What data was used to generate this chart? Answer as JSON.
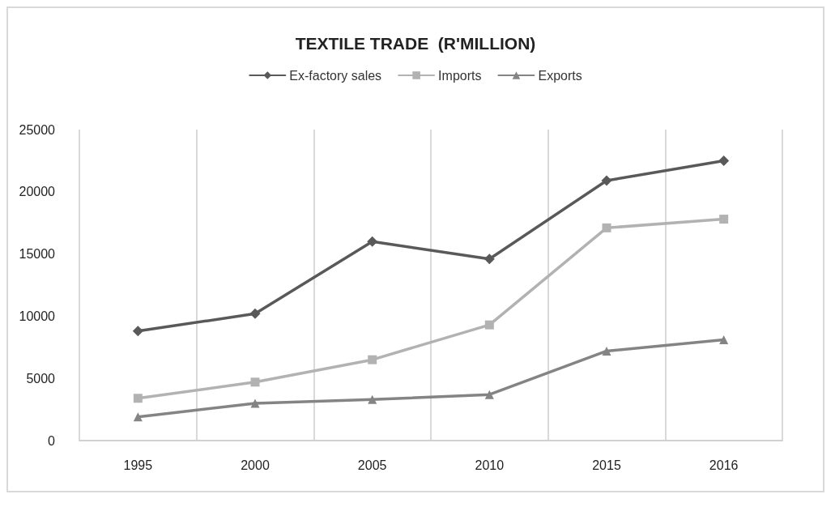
{
  "chart_data": {
    "type": "line",
    "title": "TEXTILE TRADE  (R'MILLION)",
    "categories": [
      "1995",
      "2000",
      "2005",
      "2010",
      "2015",
      "2016"
    ],
    "series": [
      {
        "name": "Ex-factory sales",
        "color": "#595959",
        "marker": "diamond",
        "values": [
          8800,
          10200,
          16000,
          14600,
          20900,
          22500
        ]
      },
      {
        "name": "Imports",
        "color": "#b2b2b2",
        "marker": "square",
        "values": [
          3400,
          4700,
          6500,
          9300,
          17100,
          17800
        ]
      },
      {
        "name": "Exports",
        "color": "#848484",
        "marker": "triangle",
        "values": [
          1900,
          3000,
          3300,
          3700,
          7200,
          8100
        ]
      }
    ],
    "ylim": [
      0,
      25000
    ],
    "yticks": [
      0,
      5000,
      10000,
      15000,
      20000,
      25000
    ],
    "grid": "x",
    "legend": "top",
    "line_style": "solid"
  }
}
